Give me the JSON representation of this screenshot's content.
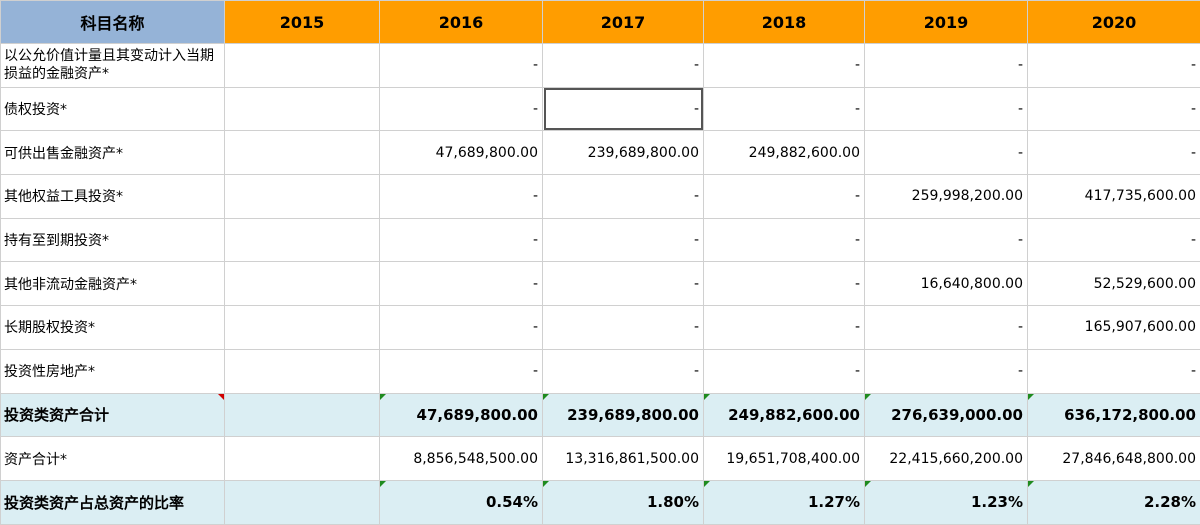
{
  "header": {
    "name": "科目名称",
    "years": [
      "2015",
      "2016",
      "2017",
      "2018",
      "2019",
      "2020"
    ]
  },
  "rows": [
    {
      "label": "以公允价值计量且其变动计入当期损益的金融资产*",
      "values": [
        "",
        "-",
        "-",
        "-",
        "-",
        "-"
      ]
    },
    {
      "label": "债权投资*",
      "values": [
        "",
        "-",
        "-",
        "-",
        "-",
        "-"
      ]
    },
    {
      "label": "可供出售金融资产*",
      "values": [
        "",
        "47,689,800.00",
        "239,689,800.00",
        "249,882,600.00",
        "-",
        "-"
      ]
    },
    {
      "label": "其他权益工具投资*",
      "values": [
        "",
        "-",
        "-",
        "-",
        "259,998,200.00",
        "417,735,600.00"
      ]
    },
    {
      "label": "持有至到期投资*",
      "values": [
        "",
        "-",
        "-",
        "-",
        "-",
        "-"
      ]
    },
    {
      "label": "其他非流动金融资产*",
      "values": [
        "",
        "-",
        "-",
        "-",
        "16,640,800.00",
        "52,529,600.00"
      ]
    },
    {
      "label": "长期股权投资*",
      "values": [
        "",
        "-",
        "-",
        "-",
        "-",
        "165,907,600.00"
      ]
    },
    {
      "label": "投资性房地产*",
      "values": [
        "",
        "-",
        "-",
        "-",
        "-",
        "-"
      ]
    },
    {
      "label": "投资类资产合计",
      "values": [
        "",
        "47,689,800.00",
        "239,689,800.00",
        "249,882,600.00",
        "276,639,000.00",
        "636,172,800.00"
      ]
    },
    {
      "label": "资产合计*",
      "values": [
        "",
        "8,856,548,500.00",
        "13,316,861,500.00",
        "19,651,708,400.00",
        "22,415,660,200.00",
        "27,846,648,800.00"
      ]
    },
    {
      "label": "投资类资产占总资产的比率",
      "values": [
        "",
        "0.54%",
        "1.80%",
        "1.27%",
        "1.23%",
        "2.28%"
      ]
    }
  ]
}
